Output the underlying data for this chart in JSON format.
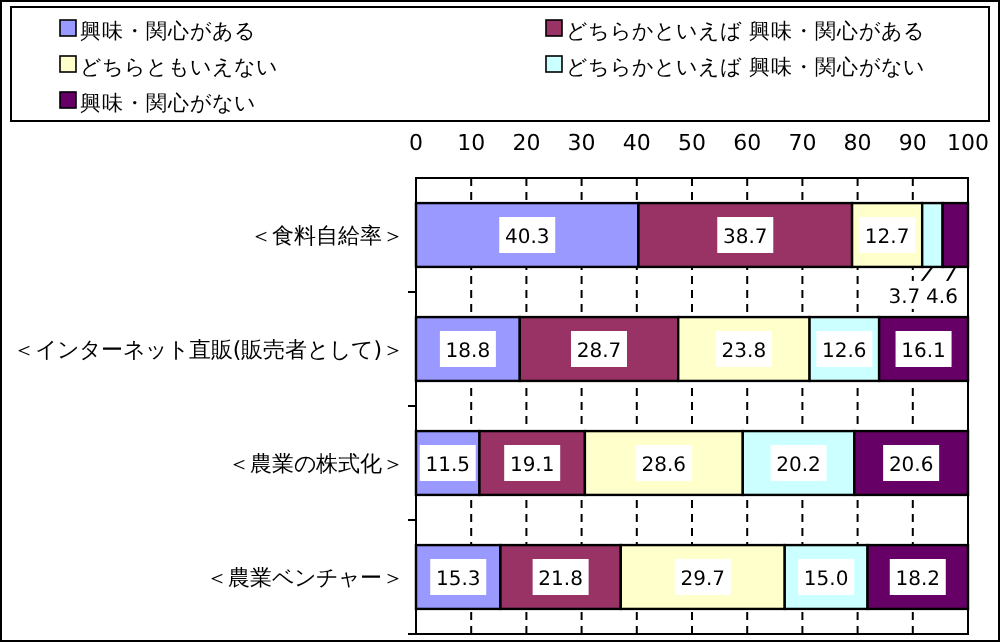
{
  "chart_data": {
    "type": "bar",
    "orientation": "horizontal",
    "stacked": true,
    "categories": [
      "＜食料自給率＞",
      "＜インターネット直販(販売者として)＞",
      "＜農業の株式化＞",
      "＜農業ベンチャー＞"
    ],
    "series": [
      {
        "name": "興味・関心がある",
        "color": "#9999ff",
        "values": [
          40.3,
          18.8,
          11.5,
          15.3
        ],
        "value_labels": [
          "40.3",
          "18.8",
          "11.5",
          "15.3"
        ]
      },
      {
        "name": "どちらかといえば 興味・関心がある",
        "color": "#993366",
        "values": [
          38.7,
          28.7,
          19.1,
          21.8
        ],
        "value_labels": [
          "38.7",
          "28.7",
          "19.1",
          "21.8"
        ]
      },
      {
        "name": "どちらともいえない",
        "color": "#ffffcc",
        "values": [
          12.7,
          23.8,
          28.6,
          29.7
        ],
        "value_labels": [
          "12.7",
          "23.8",
          "28.6",
          "29.7"
        ]
      },
      {
        "name": "どちらかといえば 興味・関心がない",
        "color": "#ccffff",
        "values": [
          3.7,
          12.6,
          20.2,
          15.0
        ],
        "value_labels": [
          "3.7",
          "12.6",
          "20.2",
          "15.0"
        ]
      },
      {
        "name": "興味・関心がない",
        "color": "#660066",
        "values": [
          4.6,
          16.1,
          20.6,
          18.2
        ],
        "value_labels": [
          "4.6",
          "16.1",
          "20.6",
          "18.2"
        ]
      }
    ],
    "xlim": [
      0,
      100
    ],
    "xticks": [
      0,
      10,
      20,
      30,
      40,
      50,
      60,
      70,
      80,
      90,
      100
    ],
    "grid": "x",
    "legend": "top"
  }
}
